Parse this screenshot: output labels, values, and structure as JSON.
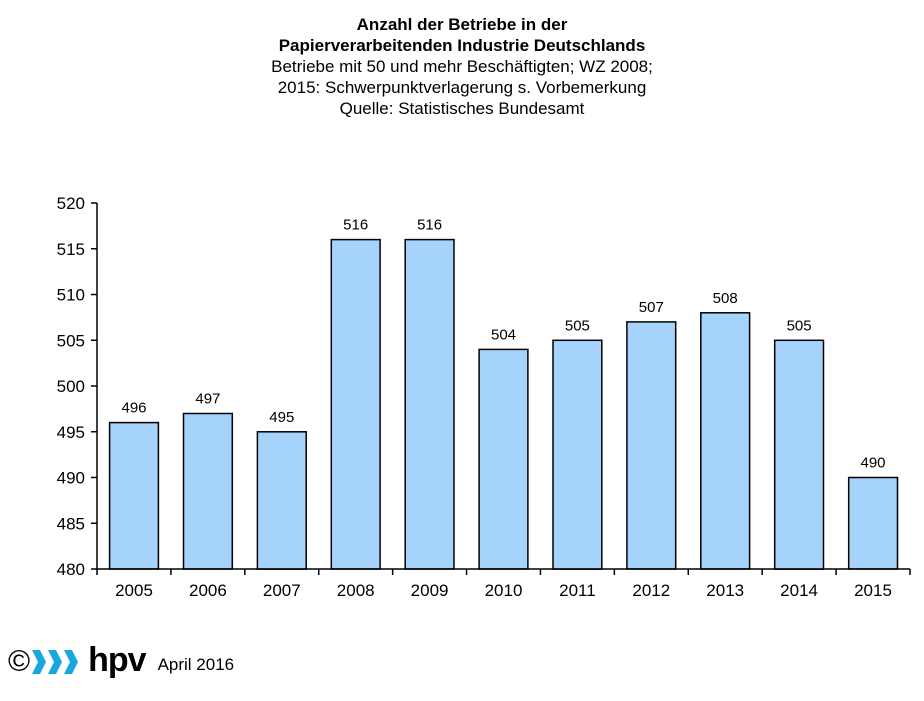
{
  "chart_data": {
    "type": "bar",
    "title": "Anzahl der Betriebe in der Papierverarbeitenden Industrie Deutschlands",
    "subtitle": [
      "Betriebe mit 50 und mehr Beschäftigten; WZ 2008;",
      "2015: Schwerpunktverlagerung s. Vorbemerkung",
      "Quelle: Statistisches Bundesamt"
    ],
    "categories": [
      "2005",
      "2006",
      "2007",
      "2008",
      "2009",
      "2010",
      "2011",
      "2012",
      "2013",
      "2014",
      "2015"
    ],
    "values": [
      496,
      497,
      495,
      516,
      516,
      504,
      505,
      507,
      508,
      505,
      490
    ],
    "data_labels": [
      "496",
      "497",
      "495",
      "516",
      "516",
      "504",
      "505",
      "507",
      "508",
      "505",
      "490"
    ],
    "ylim": [
      480,
      520
    ],
    "yticks": [
      480,
      485,
      490,
      495,
      500,
      505,
      510,
      515,
      520
    ],
    "xlabel": "",
    "ylabel": "",
    "grid": false,
    "bar_color": "#a6d3fb",
    "bar_edge_color": "#000000"
  },
  "header": {
    "title_line1": "Anzahl der Betriebe in der",
    "title_line2": "Papierverarbeitenden Industrie Deutschlands",
    "subtitle_line1": "Betriebe mit 50 und mehr Beschäftigten; WZ 2008;",
    "subtitle_line2": "2015: Schwerpunktverlagerung s. Vorbemerkung",
    "subtitle_line3": "Quelle: Statistisches Bundesamt"
  },
  "footer": {
    "copyright_symbol": "©",
    "logo_text": "hpv",
    "date": "April 2016",
    "logo_color": "#1aa7e0"
  }
}
